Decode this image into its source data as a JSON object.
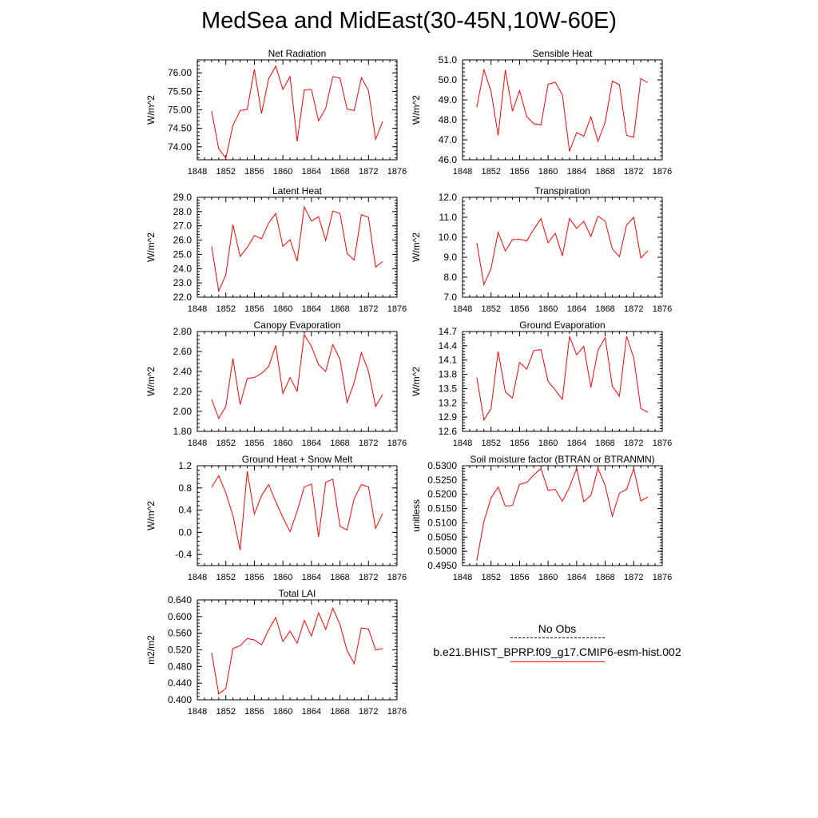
{
  "title": "MedSea and MidEast(30-45N,10W-60E)",
  "colors": {
    "series": "#ff0000",
    "axis": "#000000",
    "obs": "#000000"
  },
  "legend": {
    "obs_label": "No Obs",
    "model_label": "b.e21.BHIST_BPRP.f09_g17.CMIP6-esm-hist.002"
  },
  "chart_data": [
    {
      "type": "line",
      "title": "Net Radiation",
      "ylabel": "W/m^2",
      "xlim": [
        1848,
        1876
      ],
      "ylim": [
        73.65,
        76.35
      ],
      "xticks": [
        "1848",
        "1852",
        "1856",
        "1860",
        "1864",
        "1868",
        "1872",
        "1876"
      ],
      "yticks": [
        "74.00",
        "74.50",
        "75.00",
        "75.50",
        "76.00"
      ],
      "x": [
        1850,
        1851,
        1852,
        1853,
        1854,
        1855,
        1856,
        1857,
        1858,
        1859,
        1860,
        1861,
        1862,
        1863,
        1864,
        1865,
        1866,
        1867,
        1868,
        1869,
        1870,
        1871,
        1872,
        1873,
        1874
      ],
      "series": [
        {
          "values": [
            74.97,
            73.95,
            73.69,
            74.58,
            74.98,
            75.01,
            76.09,
            74.9,
            75.84,
            76.18,
            75.55,
            75.9,
            74.15,
            75.54,
            75.55,
            74.7,
            75.04,
            75.9,
            75.86,
            75.02,
            74.98,
            75.87,
            75.52,
            74.2,
            74.69
          ]
        }
      ]
    },
    {
      "type": "line",
      "title": "Sensible Heat",
      "ylabel": "W/m^2",
      "xlim": [
        1848,
        1876
      ],
      "ylim": [
        46.0,
        51.0
      ],
      "xticks": [
        "1848",
        "1852",
        "1856",
        "1860",
        "1864",
        "1868",
        "1872",
        "1876"
      ],
      "yticks": [
        "46.0",
        "47.0",
        "48.0",
        "49.0",
        "50.0",
        "51.0"
      ],
      "x": [
        1850,
        1851,
        1852,
        1853,
        1854,
        1855,
        1856,
        1857,
        1858,
        1859,
        1860,
        1861,
        1862,
        1863,
        1864,
        1865,
        1866,
        1867,
        1868,
        1869,
        1870,
        1871,
        1872,
        1873,
        1874
      ],
      "series": [
        {
          "values": [
            48.63,
            50.51,
            49.43,
            47.22,
            50.5,
            48.43,
            49.47,
            48.16,
            47.8,
            47.75,
            49.78,
            49.88,
            49.26,
            46.42,
            47.36,
            47.17,
            48.15,
            46.92,
            47.88,
            49.94,
            49.76,
            47.22,
            47.13,
            50.06,
            49.86
          ]
        }
      ]
    },
    {
      "type": "line",
      "title": "Latent Heat",
      "ylabel": "W/m^2",
      "xlim": [
        1848,
        1876
      ],
      "ylim": [
        22.0,
        29.0
      ],
      "xticks": [
        "1848",
        "1852",
        "1856",
        "1860",
        "1864",
        "1868",
        "1872",
        "1876"
      ],
      "yticks": [
        "22.0",
        "23.0",
        "24.0",
        "25.0",
        "26.0",
        "27.0",
        "28.0",
        "29.0"
      ],
      "x": [
        1850,
        1851,
        1852,
        1853,
        1854,
        1855,
        1856,
        1857,
        1858,
        1859,
        1860,
        1861,
        1862,
        1863,
        1864,
        1865,
        1866,
        1867,
        1868,
        1869,
        1870,
        1871,
        1872,
        1873,
        1874
      ],
      "series": [
        {
          "values": [
            25.56,
            22.42,
            23.56,
            27.08,
            24.86,
            25.49,
            26.32,
            26.09,
            27.2,
            27.87,
            25.56,
            26.03,
            24.52,
            28.33,
            27.33,
            27.64,
            25.97,
            28.04,
            27.87,
            25.07,
            24.6,
            27.79,
            27.59,
            24.11,
            24.5
          ]
        }
      ]
    },
    {
      "type": "line",
      "title": "Transpiration",
      "ylabel": "W/m^2",
      "xlim": [
        1848,
        1876
      ],
      "ylim": [
        7.0,
        12.0
      ],
      "xticks": [
        "1848",
        "1852",
        "1856",
        "1860",
        "1864",
        "1868",
        "1872",
        "1876"
      ],
      "yticks": [
        "7.0",
        "8.0",
        "9.0",
        "10.0",
        "11.0",
        "12.0"
      ],
      "x": [
        1850,
        1851,
        1852,
        1853,
        1854,
        1855,
        1856,
        1857,
        1858,
        1859,
        1860,
        1861,
        1862,
        1863,
        1864,
        1865,
        1866,
        1867,
        1868,
        1869,
        1870,
        1871,
        1872,
        1873,
        1874
      ],
      "series": [
        {
          "values": [
            9.72,
            7.63,
            8.43,
            10.25,
            9.31,
            9.88,
            9.9,
            9.82,
            10.41,
            10.93,
            9.72,
            10.2,
            9.07,
            10.94,
            10.45,
            10.8,
            10.04,
            11.06,
            10.8,
            9.43,
            9.03,
            10.61,
            11.0,
            8.97,
            9.33
          ]
        }
      ]
    },
    {
      "type": "line",
      "title": "Canopy Evaporation",
      "ylabel": "W/m^2",
      "xlim": [
        1848,
        1876
      ],
      "ylim": [
        1.8,
        2.8
      ],
      "xticks": [
        "1848",
        "1852",
        "1856",
        "1860",
        "1864",
        "1868",
        "1872",
        "1876"
      ],
      "yticks": [
        "1.80",
        "2.00",
        "2.20",
        "2.40",
        "2.60",
        "2.80"
      ],
      "x": [
        1850,
        1851,
        1852,
        1853,
        1854,
        1855,
        1856,
        1857,
        1858,
        1859,
        1860,
        1861,
        1862,
        1863,
        1864,
        1865,
        1866,
        1867,
        1868,
        1869,
        1870,
        1871,
        1872,
        1873,
        1874
      ],
      "series": [
        {
          "values": [
            2.12,
            1.93,
            2.05,
            2.53,
            2.07,
            2.33,
            2.34,
            2.38,
            2.45,
            2.66,
            2.18,
            2.34,
            2.2,
            2.77,
            2.65,
            2.47,
            2.4,
            2.67,
            2.52,
            2.09,
            2.29,
            2.59,
            2.4,
            2.05,
            2.17
          ]
        }
      ]
    },
    {
      "type": "line",
      "title": "Ground Evaporation",
      "ylabel": "W/m^2",
      "xlim": [
        1848,
        1876
      ],
      "ylim": [
        12.6,
        14.7
      ],
      "xticks": [
        "1848",
        "1852",
        "1856",
        "1860",
        "1864",
        "1868",
        "1872",
        "1876"
      ],
      "yticks": [
        "12.6",
        "12.9",
        "13.2",
        "13.5",
        "13.8",
        "14.1",
        "14.4",
        "14.7"
      ],
      "x": [
        1850,
        1851,
        1852,
        1853,
        1854,
        1855,
        1856,
        1857,
        1858,
        1859,
        1860,
        1861,
        1862,
        1863,
        1864,
        1865,
        1866,
        1867,
        1868,
        1869,
        1870,
        1871,
        1872,
        1873,
        1874
      ],
      "series": [
        {
          "values": [
            13.73,
            12.84,
            13.08,
            14.28,
            13.43,
            13.3,
            14.05,
            13.91,
            14.3,
            14.32,
            13.65,
            13.47,
            13.27,
            14.6,
            14.21,
            14.39,
            13.52,
            14.31,
            14.57,
            13.55,
            13.34,
            14.6,
            14.15,
            13.08,
            13.0
          ]
        }
      ]
    },
    {
      "type": "line",
      "title": "Ground Heat + Snow Melt",
      "ylabel": "W/m^2",
      "xlim": [
        1848,
        1876
      ],
      "ylim": [
        -0.6,
        1.2
      ],
      "xticks": [
        "1848",
        "1852",
        "1856",
        "1860",
        "1864",
        "1868",
        "1872",
        "1876"
      ],
      "yticks": [
        "-0.4",
        "0.0",
        "0.4",
        "0.8",
        "1.2"
      ],
      "x": [
        1850,
        1851,
        1852,
        1853,
        1854,
        1855,
        1856,
        1857,
        1858,
        1859,
        1860,
        1861,
        1862,
        1863,
        1864,
        1865,
        1866,
        1867,
        1868,
        1869,
        1870,
        1871,
        1872,
        1873,
        1874
      ],
      "series": [
        {
          "values": [
            0.81,
            1.02,
            0.71,
            0.3,
            -0.32,
            1.1,
            0.33,
            0.66,
            0.86,
            0.55,
            0.27,
            0.01,
            0.38,
            0.82,
            0.87,
            -0.08,
            0.9,
            0.96,
            0.11,
            0.04,
            0.61,
            0.86,
            0.82,
            0.07,
            0.34
          ]
        }
      ]
    },
    {
      "type": "line",
      "title": "Soil moisture factor (BTRAN or BTRANMN)",
      "ylabel": "unitless",
      "xlim": [
        1848,
        1876
      ],
      "ylim": [
        0.495,
        0.53
      ],
      "xticks": [
        "1848",
        "1852",
        "1856",
        "1860",
        "1864",
        "1868",
        "1872",
        "1876"
      ],
      "yticks": [
        "0.4950",
        "0.5000",
        "0.5050",
        "0.5100",
        "0.5150",
        "0.5200",
        "0.5250",
        "0.5300"
      ],
      "x": [
        1850,
        1851,
        1852,
        1853,
        1854,
        1855,
        1856,
        1857,
        1858,
        1859,
        1860,
        1861,
        1862,
        1863,
        1864,
        1865,
        1866,
        1867,
        1868,
        1869,
        1870,
        1871,
        1872,
        1873,
        1874
      ],
      "series": [
        {
          "values": [
            0.4967,
            0.5105,
            0.5187,
            0.5225,
            0.5158,
            0.5161,
            0.5235,
            0.5241,
            0.5268,
            0.529,
            0.5214,
            0.5217,
            0.5175,
            0.5225,
            0.5291,
            0.5174,
            0.5196,
            0.5291,
            0.523,
            0.5123,
            0.5204,
            0.5217,
            0.529,
            0.5177,
            0.519
          ]
        }
      ]
    },
    {
      "type": "line",
      "title": "Total LAI",
      "ylabel": "m2/m2",
      "xlim": [
        1848,
        1876
      ],
      "ylim": [
        0.4,
        0.64
      ],
      "xticks": [
        "1848",
        "1852",
        "1856",
        "1860",
        "1864",
        "1868",
        "1872",
        "1876"
      ],
      "yticks": [
        "0.400",
        "0.440",
        "0.480",
        "0.520",
        "0.560",
        "0.600",
        "0.640"
      ],
      "x": [
        1850,
        1851,
        1852,
        1853,
        1854,
        1855,
        1856,
        1857,
        1858,
        1859,
        1860,
        1861,
        1862,
        1863,
        1864,
        1865,
        1866,
        1867,
        1868,
        1869,
        1870,
        1871,
        1872,
        1873,
        1874
      ],
      "series": [
        {
          "values": [
            0.513,
            0.414,
            0.427,
            0.523,
            0.53,
            0.547,
            0.544,
            0.532,
            0.568,
            0.598,
            0.54,
            0.565,
            0.536,
            0.591,
            0.553,
            0.609,
            0.569,
            0.62,
            0.581,
            0.518,
            0.487,
            0.573,
            0.57,
            0.52,
            0.523
          ]
        }
      ]
    }
  ]
}
